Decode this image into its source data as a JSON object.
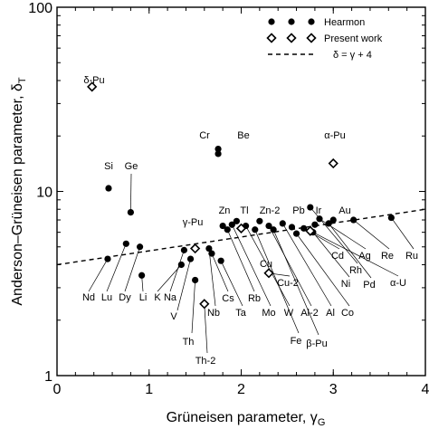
{
  "chart_data": {
    "type": "scatter",
    "xlabel": "Grüneisen parameter, γ",
    "xlabel_sub": "G",
    "ylabel": "Anderson–Grüneisen parameter, δ",
    "ylabel_sub": "T",
    "xlim": [
      0,
      4
    ],
    "ylim": [
      1,
      100
    ],
    "yscale": "log",
    "x_ticks": [
      0,
      1,
      2,
      3,
      4
    ],
    "x_tick_labels": [
      "0",
      "1",
      "2",
      "3",
      "4"
    ],
    "y_ticks": [
      1,
      10,
      100
    ],
    "y_tick_labels": [
      "1",
      "10",
      "100"
    ],
    "legend": {
      "placement": "top-right",
      "entries": [
        {
          "label": "Hearmon",
          "marker": "filled-circle"
        },
        {
          "label": "Present work",
          "marker": "open-diamond"
        },
        {
          "label": "δ = γ + 4",
          "marker": "dashed-line"
        }
      ]
    },
    "series": [
      {
        "name": "Hearmon",
        "marker": "filled-circle",
        "points": [
          {
            "label": "Nd",
            "x": 0.55,
            "y": 4.3
          },
          {
            "label": "Lu",
            "x": 0.75,
            "y": 5.2
          },
          {
            "label": "Dy",
            "x": 0.9,
            "y": 5.0
          },
          {
            "label": "Li",
            "x": 0.92,
            "y": 3.5
          },
          {
            "label": "K",
            "x": 1.35,
            "y": 4.0
          },
          {
            "label": "Na",
            "x": 1.38,
            "y": 4.8
          },
          {
            "label": "V",
            "x": 1.45,
            "y": 4.3
          },
          {
            "label": "Th",
            "x": 1.5,
            "y": 3.3
          },
          {
            "label": "Nb",
            "x": 1.65,
            "y": 4.9
          },
          {
            "label": "Cs",
            "x": 1.68,
            "y": 4.6
          },
          {
            "label": "Ta",
            "x": 1.78,
            "y": 4.2
          },
          {
            "label": "Rb",
            "x": 1.85,
            "y": 6.2
          },
          {
            "label": "Mo",
            "x": 1.9,
            "y": 6.6
          },
          {
            "label": "Zn",
            "x": 1.8,
            "y": 6.5
          },
          {
            "label": "Tl",
            "x": 1.95,
            "y": 6.9
          },
          {
            "label": "W",
            "x": 2.05,
            "y": 6.5
          },
          {
            "label": "Fe",
            "x": 2.15,
            "y": 6.2
          },
          {
            "label": "Zn-2",
            "x": 2.2,
            "y": 6.9
          },
          {
            "label": "Al-2",
            "x": 2.3,
            "y": 6.5
          },
          {
            "label": "β-Pu",
            "x": 2.35,
            "y": 6.2
          },
          {
            "label": "Al",
            "x": 2.45,
            "y": 6.7
          },
          {
            "label": "Pb",
            "x": 2.55,
            "y": 6.4
          },
          {
            "label": "Co",
            "x": 2.6,
            "y": 5.9
          },
          {
            "label": "Cd",
            "x": 2.68,
            "y": 6.3
          },
          {
            "label": "Ir",
            "x": 2.8,
            "y": 6.6
          },
          {
            "label": "Ag",
            "x": 2.85,
            "y": 7.1
          },
          {
            "label": "Rh",
            "x": 2.75,
            "y": 8.2
          },
          {
            "label": "Pd",
            "x": 2.95,
            "y": 6.7
          },
          {
            "label": "Au",
            "x": 3.0,
            "y": 7.0
          },
          {
            "label": "α-U",
            "x": 2.78,
            "y": 6.0
          },
          {
            "label": "Si",
            "x": 0.56,
            "y": 10.4
          },
          {
            "label": "Ge",
            "x": 0.8,
            "y": 7.7
          },
          {
            "label": "Cr",
            "x": 1.75,
            "y": 17.0
          },
          {
            "label": "Be",
            "x": 1.75,
            "y": 16.0
          },
          {
            "label": "Re",
            "x": 3.22,
            "y": 7.0
          },
          {
            "label": "Ru",
            "x": 3.63,
            "y": 7.2
          }
        ]
      },
      {
        "name": "Present work",
        "marker": "open-diamond",
        "points": [
          {
            "label": "δ-Pu",
            "x": 0.38,
            "y": 37.0
          },
          {
            "label": "α-Pu",
            "x": 3.0,
            "y": 14.2
          },
          {
            "label": "γ-Pu",
            "x": 1.5,
            "y": 4.9
          },
          {
            "label": "Cu",
            "x": 2.0,
            "y": 6.3
          },
          {
            "label": "Cu-2",
            "x": 2.3,
            "y": 3.6
          },
          {
            "label": "Th-2",
            "x": 1.6,
            "y": 2.45
          },
          {
            "label": "Ir",
            "x": 2.75,
            "y": 6.1
          }
        ]
      }
    ],
    "reference_line": {
      "label": "δ = γ + 4",
      "slope": 1,
      "intercept": 4
    },
    "annotations": [
      "Nd",
      "Lu",
      "Dy",
      "Li",
      "K",
      "Na",
      "V",
      "Nb",
      "Cs",
      "Ta",
      "Rb",
      "Mo",
      "W",
      "Al-2",
      "Al",
      "Co",
      "Cu-2",
      "Ni",
      "Pd",
      "α-U",
      "Th",
      "Th-2",
      "Fe",
      "β-Pu",
      "Si",
      "Ge",
      "δ-Pu",
      "Cr",
      "Be",
      "α-Pu",
      "Zn",
      "Tl",
      "Zn-2",
      "Pb",
      "Ir",
      "Au",
      "γ-Pu",
      "Cu",
      "Cd",
      "Ag",
      "Rh",
      "Re",
      "Ru"
    ]
  }
}
